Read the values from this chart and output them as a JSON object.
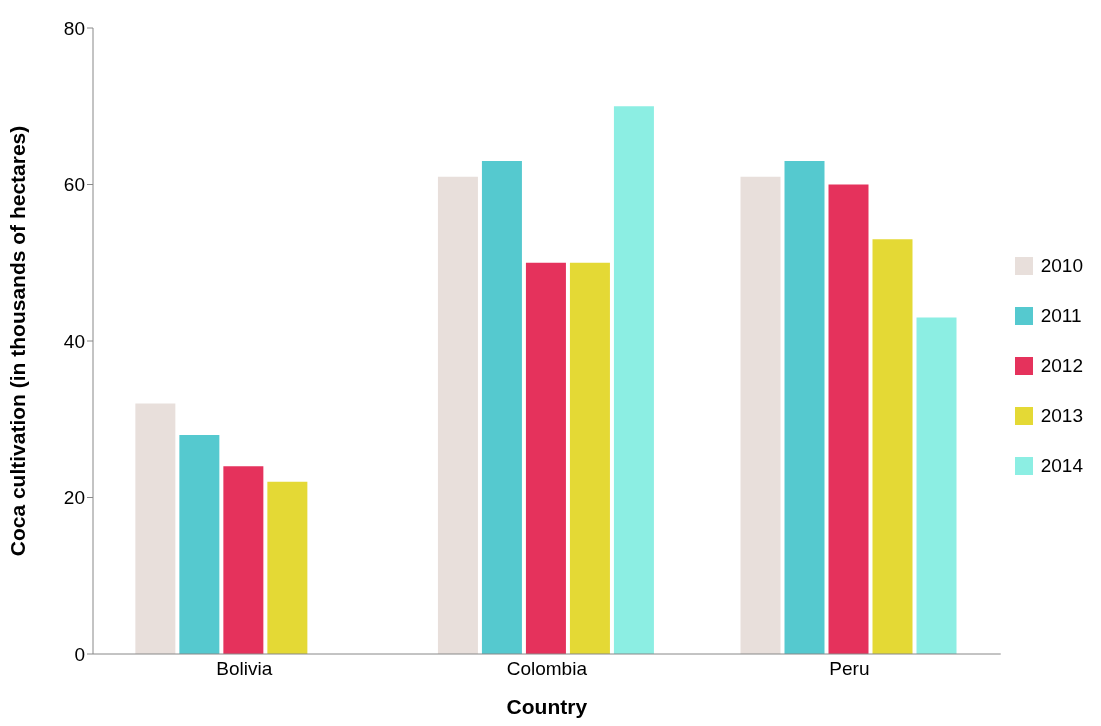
{
  "chart_data": {
    "type": "bar",
    "xlabel": "Country",
    "ylabel": "Coca cultivation (in thousands of hectares)",
    "categories": [
      "Bolivia",
      "Colombia",
      "Peru"
    ],
    "series": [
      {
        "name": "2010",
        "color": "#e8dfdb",
        "values": [
          32,
          61,
          61
        ]
      },
      {
        "name": "2011",
        "color": "#55c9cf",
        "values": [
          28,
          63,
          63
        ]
      },
      {
        "name": "2012",
        "color": "#e5325c",
        "values": [
          24,
          50,
          60
        ]
      },
      {
        "name": "2013",
        "color": "#e4d935",
        "values": [
          22,
          50,
          53
        ]
      },
      {
        "name": "2014",
        "color": "#8ceee3",
        "values": [
          null,
          70,
          43
        ]
      }
    ],
    "ylim": [
      0,
      80
    ],
    "yticks": [
      0,
      20,
      40,
      60,
      80
    ],
    "grid": false,
    "legend": "right"
  }
}
